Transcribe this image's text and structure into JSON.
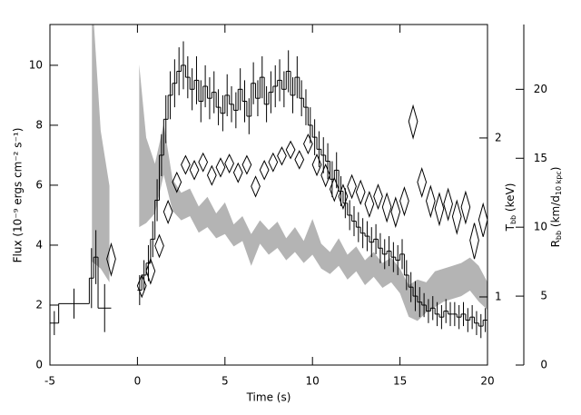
{
  "chart_data": {
    "type": "burst",
    "xlabel": "Time (s)",
    "ylabel": "Flux (10⁻⁹ ergs cm⁻² s⁻¹)",
    "y2label": [
      "T",
      "bb",
      " (keV)"
    ],
    "y3label": [
      "R",
      "bb",
      " (km/d",
      "10 kpc",
      ")"
    ],
    "xlim": [
      -5,
      20
    ],
    "xticks": [
      -5,
      0,
      5,
      10,
      15,
      20
    ],
    "ylim": [
      0,
      11.36
    ],
    "yticks": [
      0,
      2,
      4,
      6,
      8,
      10
    ],
    "y2lim": [
      0.743,
      3.28
    ],
    "y2ticks": [
      1,
      2
    ],
    "y2log": true,
    "y3lim": [
      0,
      24.7
    ],
    "y3ticks": [
      0,
      5,
      10,
      15,
      20
    ],
    "series": [
      {
        "kind": "histogram",
        "color": "#000000",
        "bins": [
          -5,
          -4.5,
          -2.75,
          -2.5,
          -2.25,
          -1.5,
          0,
          0.25,
          0.5,
          0.75,
          1,
          1.25,
          1.5,
          1.75,
          2,
          2.25,
          2.5,
          2.75,
          3,
          3.25,
          3.5,
          3.75,
          4,
          4.25,
          4.5,
          4.75,
          5,
          5.25,
          5.5,
          5.75,
          6,
          6.25,
          6.5,
          6.75,
          7,
          7.25,
          7.5,
          7.75,
          8,
          8.25,
          8.5,
          8.75,
          9,
          9.25,
          9.5,
          9.75,
          10,
          10.25,
          10.5,
          10.75,
          11,
          11.25,
          11.5,
          11.75,
          12,
          12.25,
          12.5,
          12.75,
          13,
          13.25,
          13.5,
          13.75,
          14,
          14.25,
          14.5,
          14.75,
          15,
          15.25,
          15.5,
          15.75,
          16,
          16.25,
          16.5,
          16.75,
          17,
          17.25,
          17.5,
          17.75,
          18,
          18.25,
          18.5,
          18.75,
          19,
          19.25,
          19.5,
          19.75,
          20
        ],
        "values": [
          1.4,
          2.05,
          2.9,
          3.6,
          1.9,
          null,
          2.5,
          3.0,
          3.4,
          4.2,
          5.5,
          7.0,
          8.2,
          9.0,
          9.4,
          9.8,
          10.0,
          9.6,
          9.2,
          9.5,
          8.8,
          9.3,
          8.9,
          9.1,
          8.6,
          8.4,
          9.0,
          8.7,
          8.5,
          9.2,
          8.8,
          8.3,
          9.4,
          8.9,
          9.6,
          8.7,
          9.1,
          9.3,
          9.5,
          9.2,
          9.8,
          9.0,
          9.6,
          8.9,
          8.6,
          8.0,
          7.6,
          7.2,
          7.0,
          6.8,
          6.2,
          6.5,
          5.8,
          5.4,
          5.0,
          4.8,
          4.6,
          4.4,
          4.3,
          4.1,
          4.2,
          3.9,
          3.7,
          3.8,
          3.6,
          3.5,
          3.7,
          3.0,
          2.6,
          2.3,
          2.1,
          2.0,
          1.8,
          1.9,
          1.7,
          1.6,
          1.8,
          1.7,
          1.7,
          1.6,
          1.7,
          1.5,
          1.6,
          1.4,
          1.3,
          1.5
        ],
        "errors": [
          0.4,
          0.5,
          1.0,
          0.9,
          0.8,
          null,
          0.5,
          0.5,
          0.6,
          0.6,
          0.7,
          0.7,
          0.8,
          0.8,
          0.8,
          0.8,
          0.8,
          0.7,
          0.7,
          0.8,
          0.7,
          0.7,
          0.7,
          0.7,
          0.6,
          0.6,
          0.7,
          0.6,
          0.6,
          0.7,
          0.7,
          0.6,
          0.7,
          0.6,
          0.7,
          0.6,
          0.7,
          0.7,
          0.7,
          0.6,
          0.7,
          0.6,
          0.7,
          0.6,
          0.6,
          0.6,
          0.6,
          0.6,
          0.6,
          0.6,
          0.6,
          0.6,
          0.5,
          0.5,
          0.5,
          0.5,
          0.5,
          0.5,
          0.5,
          0.5,
          0.5,
          0.5,
          0.5,
          0.5,
          0.5,
          0.5,
          0.5,
          0.5,
          0.5,
          0.5,
          0.5,
          0.4,
          0.4,
          0.4,
          0.4,
          0.4,
          0.4,
          0.4,
          0.4,
          0.4,
          0.4,
          0.4,
          0.4,
          0.4,
          0.4,
          0.4
        ]
      },
      {
        "kind": "diamonds",
        "axis": "y2",
        "color": "#000000",
        "x": [
          -1.5,
          0.25,
          0.75,
          1.25,
          1.75,
          2.25,
          2.75,
          3.25,
          3.75,
          4.25,
          4.75,
          5.25,
          5.75,
          6.25,
          6.75,
          7.25,
          7.75,
          8.25,
          8.75,
          9.25,
          9.75,
          10.25,
          10.75,
          11.25,
          11.75,
          12.25,
          12.75,
          13.25,
          13.75,
          14.25,
          14.75,
          15.25,
          15.75,
          16.25,
          16.75,
          17.25,
          17.75,
          18.25,
          18.75,
          19.25,
          19.75
        ],
        "values": [
          1.18,
          1.05,
          1.12,
          1.25,
          1.45,
          1.65,
          1.78,
          1.74,
          1.8,
          1.7,
          1.76,
          1.79,
          1.72,
          1.78,
          1.62,
          1.74,
          1.8,
          1.85,
          1.9,
          1.82,
          1.95,
          1.78,
          1.7,
          1.6,
          1.55,
          1.62,
          1.58,
          1.5,
          1.55,
          1.48,
          1.45,
          1.52,
          2.15,
          1.65,
          1.52,
          1.47,
          1.5,
          1.42,
          1.48,
          1.28,
          1.4
        ],
        "errors": [
          0.08,
          0.05,
          0.06,
          0.06,
          0.07,
          0.07,
          0.07,
          0.07,
          0.07,
          0.07,
          0.07,
          0.07,
          0.07,
          0.07,
          0.07,
          0.07,
          0.07,
          0.07,
          0.07,
          0.07,
          0.08,
          0.08,
          0.08,
          0.08,
          0.08,
          0.08,
          0.08,
          0.08,
          0.08,
          0.09,
          0.09,
          0.09,
          0.15,
          0.1,
          0.1,
          0.1,
          0.1,
          0.1,
          0.1,
          0.1,
          0.1
        ]
      },
      {
        "kind": "band",
        "axis": "y3",
        "color": "#b4b4b4",
        "x": [
          -2.6,
          -2.1,
          -1.6,
          -0.8,
          0.1,
          0.5,
          1.0,
          1.5,
          2.0,
          2.5,
          3.0,
          3.5,
          4.0,
          4.5,
          5.0,
          5.5,
          6.0,
          6.5,
          7.0,
          7.5,
          8.0,
          8.5,
          9.0,
          9.5,
          10.0,
          10.5,
          11.0,
          11.5,
          12.0,
          12.5,
          13.0,
          13.5,
          14.0,
          14.5,
          15.0,
          15.5,
          16.0,
          16.5,
          17.0,
          17.5,
          18.0,
          18.5,
          19.0,
          19.5,
          20.0
        ],
        "upper": [
          27,
          17,
          13,
          null,
          21.8,
          16.5,
          14.6,
          17.5,
          13.5,
          12.5,
          12.8,
          11.5,
          12.2,
          11.0,
          11.8,
          10.2,
          10.8,
          9.5,
          10.5,
          9.8,
          10.4,
          9.2,
          10.0,
          9.0,
          10.6,
          8.8,
          8.2,
          9.2,
          8.0,
          8.6,
          7.6,
          8.2,
          7.4,
          7.8,
          7.0,
          5.8,
          6.2,
          6.0,
          6.8,
          7.0,
          7.2,
          7.4,
          7.8,
          7.2,
          6.0
        ],
        "lower": [
          7.5,
          7,
          6,
          null,
          10,
          10.3,
          11,
          13.8,
          11.2,
          10.5,
          10.8,
          9.6,
          10.0,
          9.2,
          9.5,
          8.6,
          9.0,
          7.2,
          8.8,
          8.0,
          8.5,
          7.6,
          8.2,
          7.4,
          8.0,
          7.0,
          6.6,
          7.2,
          6.2,
          6.8,
          5.8,
          6.4,
          5.6,
          6.0,
          5.2,
          3.5,
          3.2,
          3.8,
          4.2,
          4.6,
          4.8,
          5.0,
          5.4,
          4.6,
          4.0
        ]
      }
    ]
  }
}
